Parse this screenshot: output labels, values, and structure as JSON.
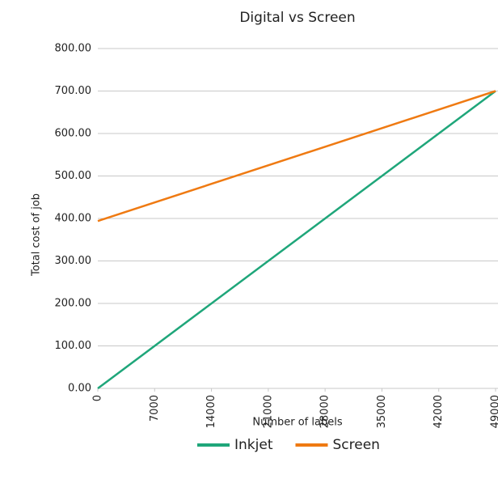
{
  "chart_data": {
    "type": "line",
    "title": "Digital vs Screen",
    "x_label": "Number of labels",
    "y_label": "Total cost of job",
    "x": [
      0,
      49000
    ],
    "series": [
      {
        "name": "Inkjet",
        "color": "#1fa67a",
        "values": [
          0,
          700
        ]
      },
      {
        "name": "Screen",
        "color": "#ef7a12",
        "values": [
          394,
          700
        ]
      }
    ],
    "xlim": [
      0,
      49000
    ],
    "xticks": [
      0,
      7000,
      14000,
      21000,
      28000,
      35000,
      42000,
      49000
    ],
    "ylim": [
      0,
      800
    ],
    "yticks": [
      {
        "value": 0,
        "label": "0.00"
      },
      {
        "value": 100,
        "label": "100.00"
      },
      {
        "value": 200,
        "label": "200.00"
      },
      {
        "value": 300,
        "label": "300.00"
      },
      {
        "value": 400,
        "label": "400.00"
      },
      {
        "value": 500,
        "label": "500.00"
      },
      {
        "value": 600,
        "label": "600.00"
      },
      {
        "value": 700,
        "label": "700.00"
      },
      {
        "value": 800,
        "label": "800.00"
      }
    ],
    "grid": true,
    "legend": "bottom"
  }
}
